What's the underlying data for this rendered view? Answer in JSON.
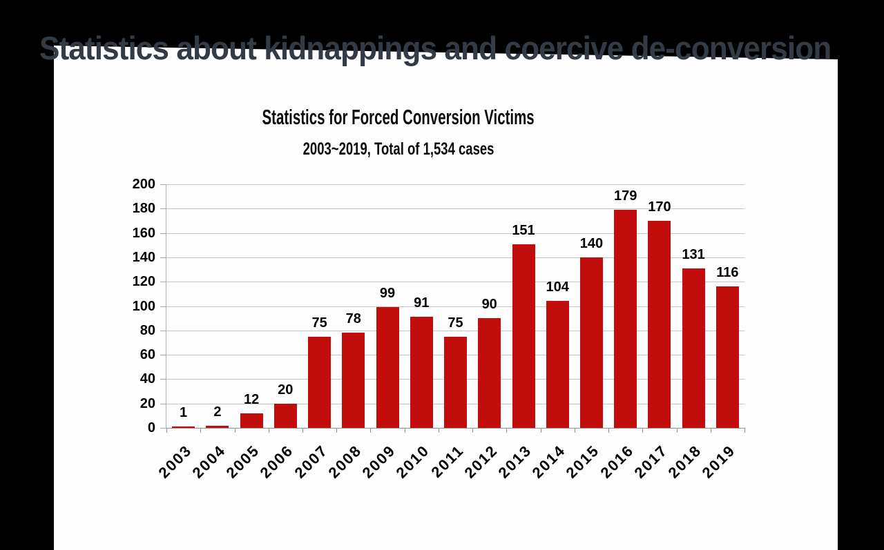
{
  "page": {
    "title": "Statistics about kidnappings and coercive de-conversion"
  },
  "chart_data": {
    "type": "bar",
    "title": "Statistics for Forced Conversion Victims",
    "subtitle": "2003~2019, Total of 1,534 cases",
    "categories": [
      "2003",
      "2004",
      "2005",
      "2006",
      "2007",
      "2008",
      "2009",
      "2010",
      "2011",
      "2012",
      "2013",
      "2014",
      "2015",
      "2016",
      "2017",
      "2018",
      "2019"
    ],
    "values": [
      1,
      2,
      12,
      20,
      75,
      78,
      99,
      91,
      75,
      90,
      151,
      104,
      140,
      179,
      170,
      131,
      116
    ],
    "xlabel": "",
    "ylabel": "",
    "ylim": [
      0,
      200
    ],
    "yticks": [
      0,
      20,
      40,
      60,
      80,
      100,
      120,
      140,
      160,
      180,
      200
    ],
    "grid": "horizontal",
    "legend": "none",
    "data_labels": "above bars",
    "bar_color": "#C20D0D",
    "gridline_color": "#C6C6C6",
    "axis_color": "#8F8F8F",
    "label_color": "#000000"
  },
  "colors": {
    "page_background": "#000000",
    "slide_background": "#FEFEFE",
    "page_title_text": "#333B46"
  }
}
